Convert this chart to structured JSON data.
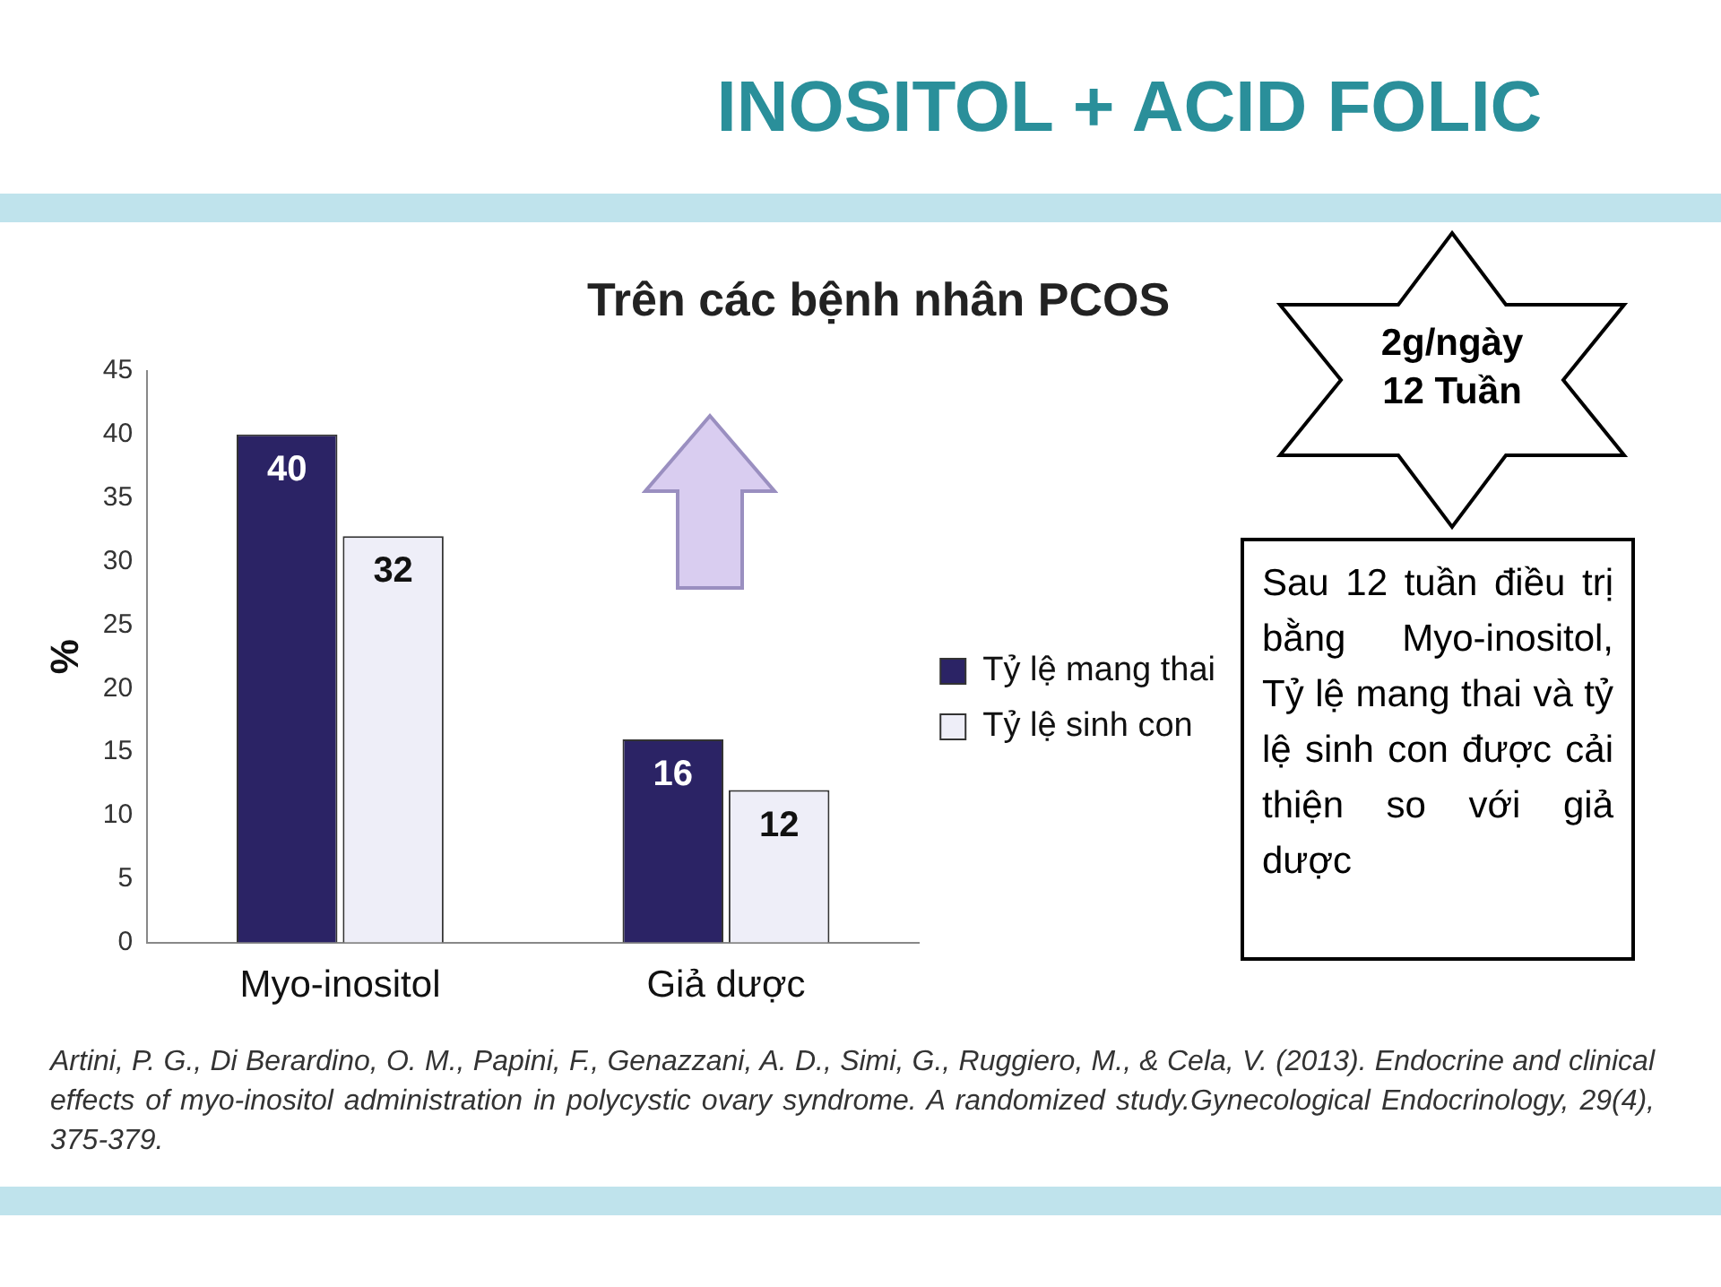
{
  "chart_data": {
    "type": "bar",
    "title": "INOSITOL + ACID FOLIC",
    "subtitle": "Trên các bệnh nhân PCOS",
    "ylabel": "%",
    "categories": [
      "Myo-inositol",
      "Giả dược"
    ],
    "series": [
      {
        "name": "Tỷ lệ mang thai",
        "color": "#2b2365",
        "values": [
          40,
          16
        ]
      },
      {
        "name": "Tỷ lệ sinh con",
        "color": "#eeeef8",
        "values": [
          32,
          12
        ]
      }
    ],
    "ylim": [
      0,
      45
    ],
    "yticks": [
      0,
      5,
      10,
      15,
      20,
      25,
      30,
      35,
      40,
      45
    ],
    "grid": false,
    "legend": "right",
    "data_labels": true,
    "annotations": [
      "2g/ngày\n12 Tuần",
      "Sau 12 tuần điều trị bằng Myo-inositol, Tỷ lệ mang thai và tỷ lệ sinh con được cải thiện so với giả dược",
      "Artini, P. G., Di Berardino, O. M., Papini, F., Genazzani, A. D., Simi, G., Ruggiero, M., & Cela, V. (2013). Endocrine and clinical effects of myo-inositol administration in polycystic ovary syndrome. A randomized study.Gynecological Endocrinology, 29(4), 375-379."
    ]
  }
}
